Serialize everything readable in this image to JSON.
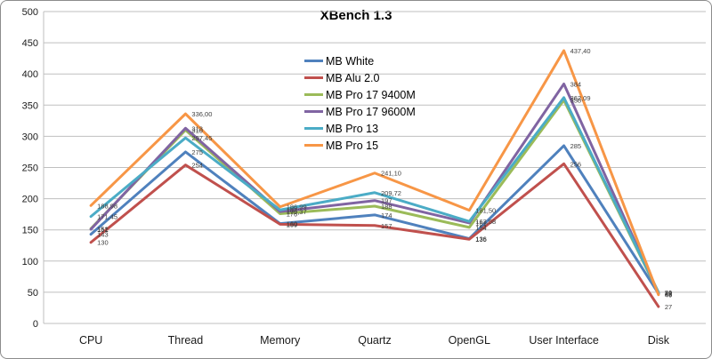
{
  "chart_data": {
    "type": "line",
    "title": "XBench 1.3",
    "categories": [
      "CPU",
      "Thread",
      "Memory",
      "Quartz",
      "OpenGL",
      "User Interface",
      "Disk"
    ],
    "ylim": [
      0,
      500
    ],
    "ytick_step": 50,
    "grid": true,
    "legend_position": "upper-center",
    "axis_color": "#bfbfbf",
    "tick_label_color": "#1a1a1a",
    "point_label_color": "#3f3f3f",
    "series": [
      {
        "name": "MB White",
        "color": "#4f81bd",
        "values": [
          143,
          275,
          160,
          174,
          136,
          285,
          48
        ],
        "labels": [
          "143",
          "275",
          "160",
          "174",
          "136",
          "285",
          "48"
        ]
      },
      {
        "name": "MB Alu 2.0",
        "color": "#c0504d",
        "values": [
          130,
          254,
          159,
          157,
          135,
          256,
          27
        ],
        "labels": [
          "130",
          "254",
          "159",
          "157",
          "135",
          "256",
          "27"
        ]
      },
      {
        "name": "MB Pro 17 9400M",
        "color": "#9bbb59",
        "values": [
          152,
          310,
          176,
          188,
          154,
          358,
          49
        ],
        "labels": [
          "152",
          "310",
          "176",
          "188",
          "154",
          "358",
          "49"
        ]
      },
      {
        "name": "MB Pro 17 9600M",
        "color": "#8064a2",
        "values": [
          151,
          313,
          179.37,
          197,
          161,
          384,
          48
        ],
        "labels": [
          "151",
          "313",
          "179,37",
          "197",
          "161",
          "384",
          "48"
        ]
      },
      {
        "name": "MB Pro 13",
        "color": "#4bacc6",
        "values": [
          171.45,
          297.45,
          182,
          209.72,
          163.58,
          362.09,
          50
        ],
        "labels": [
          "171,45",
          "297,45",
          "182",
          "209,72",
          "163,58",
          "362,09",
          "50"
        ]
      },
      {
        "name": "MB Pro 15",
        "color": "#f79646",
        "values": [
          188.98,
          336,
          186.99,
          241.1,
          181.5,
          437.4,
          46
        ],
        "labels": [
          "188,98",
          "336,00",
          "186,99",
          "241,10",
          "181,50",
          "437,40",
          "46"
        ]
      }
    ]
  }
}
